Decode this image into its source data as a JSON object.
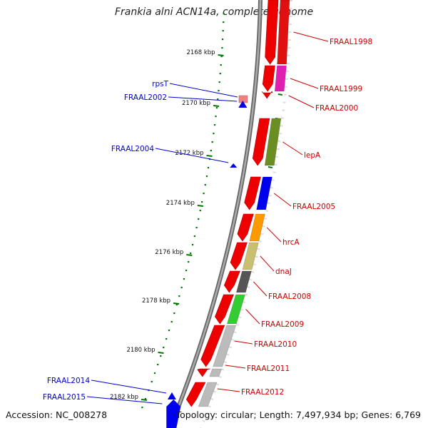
{
  "title": "Frankia alni ACN14a, complete genome",
  "footer": {
    "accession": "Accession: NC_008278",
    "summary": "Topology: circular; Length: 7,497,934 bp; Genes: 6,769"
  },
  "colors": {
    "forward_label": "#cc0000",
    "reverse_label": "#0000cc",
    "tick": "#007700",
    "backbone": "#888888"
  },
  "scale": {
    "unit": "kbp",
    "ticks": [
      {
        "label": "2168 kbp"
      },
      {
        "label": "2170 kbp"
      },
      {
        "label": "2172 kbp"
      },
      {
        "label": "2174 kbp"
      },
      {
        "label": "2176 kbp"
      },
      {
        "label": "2178 kbp"
      },
      {
        "label": "2180 kbp"
      },
      {
        "label": "2182 kbp"
      }
    ]
  },
  "genes": {
    "forward": [
      {
        "label": "FRAAL1998",
        "color": "#e01010"
      },
      {
        "label": "FRAAL1999",
        "color": "#e020b0"
      },
      {
        "label": "FRAAL2000",
        "color": "#e01010"
      },
      {
        "label": "lepA",
        "color": "#6b8e23"
      },
      {
        "label": "FRAAL2005",
        "color": "#0000ee"
      },
      {
        "label": "hrcA",
        "color": "#ff9900"
      },
      {
        "label": "dnaJ",
        "color": "#c8c070"
      },
      {
        "label": "FRAAL2008",
        "color": "#555555"
      },
      {
        "label": "FRAAL2009",
        "color": "#33cc33"
      },
      {
        "label": "FRAAL2010",
        "color": "#bbbbbb"
      },
      {
        "label": "FRAAL2011",
        "color": "#bbbbbb"
      },
      {
        "label": "FRAAL2012",
        "color": "#bbbbbb"
      }
    ],
    "reverse": [
      {
        "label": "rpsT"
      },
      {
        "label": "FRAAL2002"
      },
      {
        "label": "FRAAL2004"
      },
      {
        "label": "FRAAL2014"
      },
      {
        "label": "FRAAL2015"
      }
    ]
  }
}
